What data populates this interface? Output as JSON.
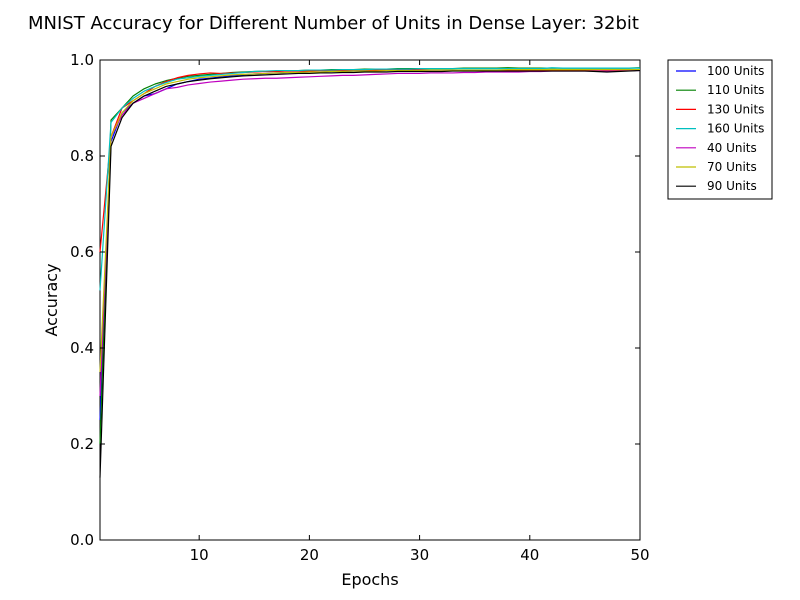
{
  "chart_data": {
    "type": "line",
    "title": "MNIST Accuracy for Different Number of Units in Dense Layer: 32bit",
    "xlabel": "Epochs",
    "ylabel": "Accuracy",
    "xlim": [
      1,
      50
    ],
    "ylim": [
      0.0,
      1.0
    ],
    "x_ticks": [
      10,
      20,
      30,
      40,
      50
    ],
    "y_ticks": [
      0.0,
      0.2,
      0.4,
      0.6,
      0.8,
      1.0
    ],
    "x_tick_labels": [
      "10",
      "20",
      "30",
      "40",
      "50"
    ],
    "y_tick_labels": [
      "0.0",
      "0.2",
      "0.4",
      "0.6",
      "0.8",
      "1.0"
    ],
    "grid": false,
    "legend_position": "outside-top-right",
    "x": [
      1,
      2,
      3,
      4,
      5,
      6,
      7,
      8,
      9,
      10,
      11,
      12,
      13,
      14,
      15,
      16,
      17,
      18,
      19,
      20,
      21,
      22,
      23,
      24,
      25,
      26,
      27,
      28,
      29,
      30,
      31,
      32,
      33,
      34,
      35,
      36,
      37,
      38,
      39,
      40,
      41,
      42,
      43,
      44,
      45,
      46,
      47,
      48,
      49,
      50
    ],
    "series": [
      {
        "name": "100 Units",
        "color": "#0000ff",
        "values": [
          0.25,
          0.83,
          0.89,
          0.91,
          0.925,
          0.93,
          0.94,
          0.95,
          0.955,
          0.96,
          0.962,
          0.965,
          0.967,
          0.969,
          0.971,
          0.972,
          0.973,
          0.974,
          0.974,
          0.975,
          0.975,
          0.976,
          0.976,
          0.977,
          0.977,
          0.978,
          0.978,
          0.978,
          0.978,
          0.979,
          0.979,
          0.979,
          0.979,
          0.979,
          0.979,
          0.978,
          0.976,
          0.978,
          0.978,
          0.978,
          0.977,
          0.979,
          0.979,
          0.98,
          0.979,
          0.98,
          0.98,
          0.979,
          0.98,
          0.98
        ]
      },
      {
        "name": "110 Units",
        "color": "#008000",
        "values": [
          0.2,
          0.875,
          0.9,
          0.925,
          0.94,
          0.95,
          0.957,
          0.962,
          0.966,
          0.968,
          0.97,
          0.972,
          0.974,
          0.975,
          0.976,
          0.977,
          0.977,
          0.978,
          0.978,
          0.979,
          0.979,
          0.98,
          0.98,
          0.98,
          0.981,
          0.981,
          0.981,
          0.982,
          0.982,
          0.982,
          0.982,
          0.982,
          0.982,
          0.983,
          0.983,
          0.983,
          0.983,
          0.984,
          0.983,
          0.983,
          0.983,
          0.983,
          0.983,
          0.983,
          0.983,
          0.983,
          0.983,
          0.983,
          0.983,
          0.984
        ]
      },
      {
        "name": "130 Units",
        "color": "#ff0000",
        "values": [
          0.6,
          0.84,
          0.9,
          0.915,
          0.93,
          0.945,
          0.955,
          0.963,
          0.968,
          0.971,
          0.973,
          0.972,
          0.973,
          0.974,
          0.975,
          0.976,
          0.976,
          0.977,
          0.977,
          0.977,
          0.978,
          0.978,
          0.978,
          0.978,
          0.978,
          0.979,
          0.979,
          0.979,
          0.979,
          0.979,
          0.979,
          0.979,
          0.979,
          0.979,
          0.979,
          0.979,
          0.979,
          0.979,
          0.979,
          0.979,
          0.979,
          0.979,
          0.979,
          0.979,
          0.979,
          0.98,
          0.979,
          0.979,
          0.979,
          0.98
        ]
      },
      {
        "name": "160 Units",
        "color": "#00bfbf",
        "values": [
          0.52,
          0.87,
          0.9,
          0.92,
          0.935,
          0.945,
          0.953,
          0.96,
          0.963,
          0.966,
          0.968,
          0.97,
          0.972,
          0.974,
          0.976,
          0.977,
          0.978,
          0.978,
          0.978,
          0.979,
          0.979,
          0.979,
          0.98,
          0.98,
          0.98,
          0.981,
          0.981,
          0.981,
          0.981,
          0.982,
          0.982,
          0.982,
          0.982,
          0.982,
          0.982,
          0.982,
          0.982,
          0.982,
          0.982,
          0.982,
          0.982,
          0.984,
          0.983,
          0.983,
          0.983,
          0.983,
          0.983,
          0.983,
          0.983,
          0.983
        ]
      },
      {
        "name": "40 Units",
        "color": "#bf00bf",
        "values": [
          0.3,
          0.84,
          0.885,
          0.91,
          0.92,
          0.93,
          0.94,
          0.943,
          0.948,
          0.951,
          0.954,
          0.956,
          0.958,
          0.96,
          0.961,
          0.962,
          0.962,
          0.963,
          0.964,
          0.965,
          0.966,
          0.967,
          0.968,
          0.968,
          0.969,
          0.97,
          0.971,
          0.972,
          0.972,
          0.972,
          0.973,
          0.973,
          0.973,
          0.974,
          0.974,
          0.975,
          0.975,
          0.975,
          0.975,
          0.976,
          0.976,
          0.977,
          0.977,
          0.977,
          0.977,
          0.977,
          0.977,
          0.977,
          0.978,
          0.978
        ]
      },
      {
        "name": "70 Units",
        "color": "#bfbf00",
        "values": [
          0.35,
          0.84,
          0.89,
          0.915,
          0.93,
          0.94,
          0.95,
          0.955,
          0.96,
          0.963,
          0.965,
          0.967,
          0.969,
          0.97,
          0.971,
          0.972,
          0.973,
          0.974,
          0.974,
          0.975,
          0.975,
          0.976,
          0.976,
          0.977,
          0.977,
          0.977,
          0.978,
          0.978,
          0.978,
          0.978,
          0.979,
          0.979,
          0.979,
          0.979,
          0.979,
          0.979,
          0.979,
          0.98,
          0.98,
          0.98,
          0.98,
          0.98,
          0.98,
          0.98,
          0.98,
          0.98,
          0.98,
          0.98,
          0.98,
          0.98
        ]
      },
      {
        "name": "90 Units",
        "color": "#000000",
        "values": [
          0.13,
          0.82,
          0.88,
          0.91,
          0.925,
          0.935,
          0.945,
          0.95,
          0.955,
          0.958,
          0.961,
          0.963,
          0.965,
          0.967,
          0.968,
          0.969,
          0.97,
          0.971,
          0.972,
          0.972,
          0.973,
          0.973,
          0.974,
          0.974,
          0.975,
          0.975,
          0.975,
          0.976,
          0.976,
          0.976,
          0.976,
          0.976,
          0.977,
          0.977,
          0.977,
          0.977,
          0.977,
          0.977,
          0.977,
          0.977,
          0.977,
          0.977,
          0.977,
          0.977,
          0.977,
          0.976,
          0.975,
          0.976,
          0.977,
          0.978
        ]
      }
    ]
  }
}
